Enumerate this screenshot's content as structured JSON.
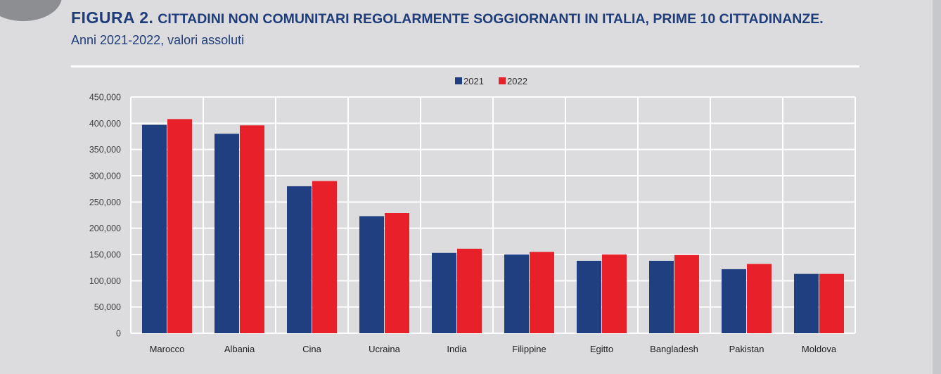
{
  "header": {
    "figure_label": "FIGURA 2.",
    "title": "CITTADINI NON COMUNITARI REGOLARMENTE SOGGIORNANTI IN ITALIA, PRIME 10 CITTADINANZE.",
    "subtitle": "Anni 2021-2022, valori assoluti"
  },
  "chart_data": {
    "type": "bar",
    "categories": [
      "Marocco",
      "Albania",
      "Cina",
      "Ucraina",
      "India",
      "Filippine",
      "Egitto",
      "Bangladesh",
      "Pakistan",
      "Moldova"
    ],
    "series": [
      {
        "name": "2021",
        "color": "#1f3f80",
        "values": [
          397000,
          380000,
          280000,
          223000,
          153000,
          150000,
          138000,
          138000,
          122000,
          113000
        ]
      },
      {
        "name": "2022",
        "color": "#e8202a",
        "values": [
          408000,
          396000,
          290000,
          229000,
          161000,
          155000,
          150000,
          149000,
          132000,
          113000
        ]
      }
    ],
    "ylim": [
      0,
      450000
    ],
    "y_ticks": [
      "0",
      "50,000",
      "100,000",
      "150,000",
      "200,000",
      "250,000",
      "300,000",
      "350,000",
      "400,000",
      "450,000"
    ],
    "grid": true,
    "legend_position": "top-center"
  }
}
